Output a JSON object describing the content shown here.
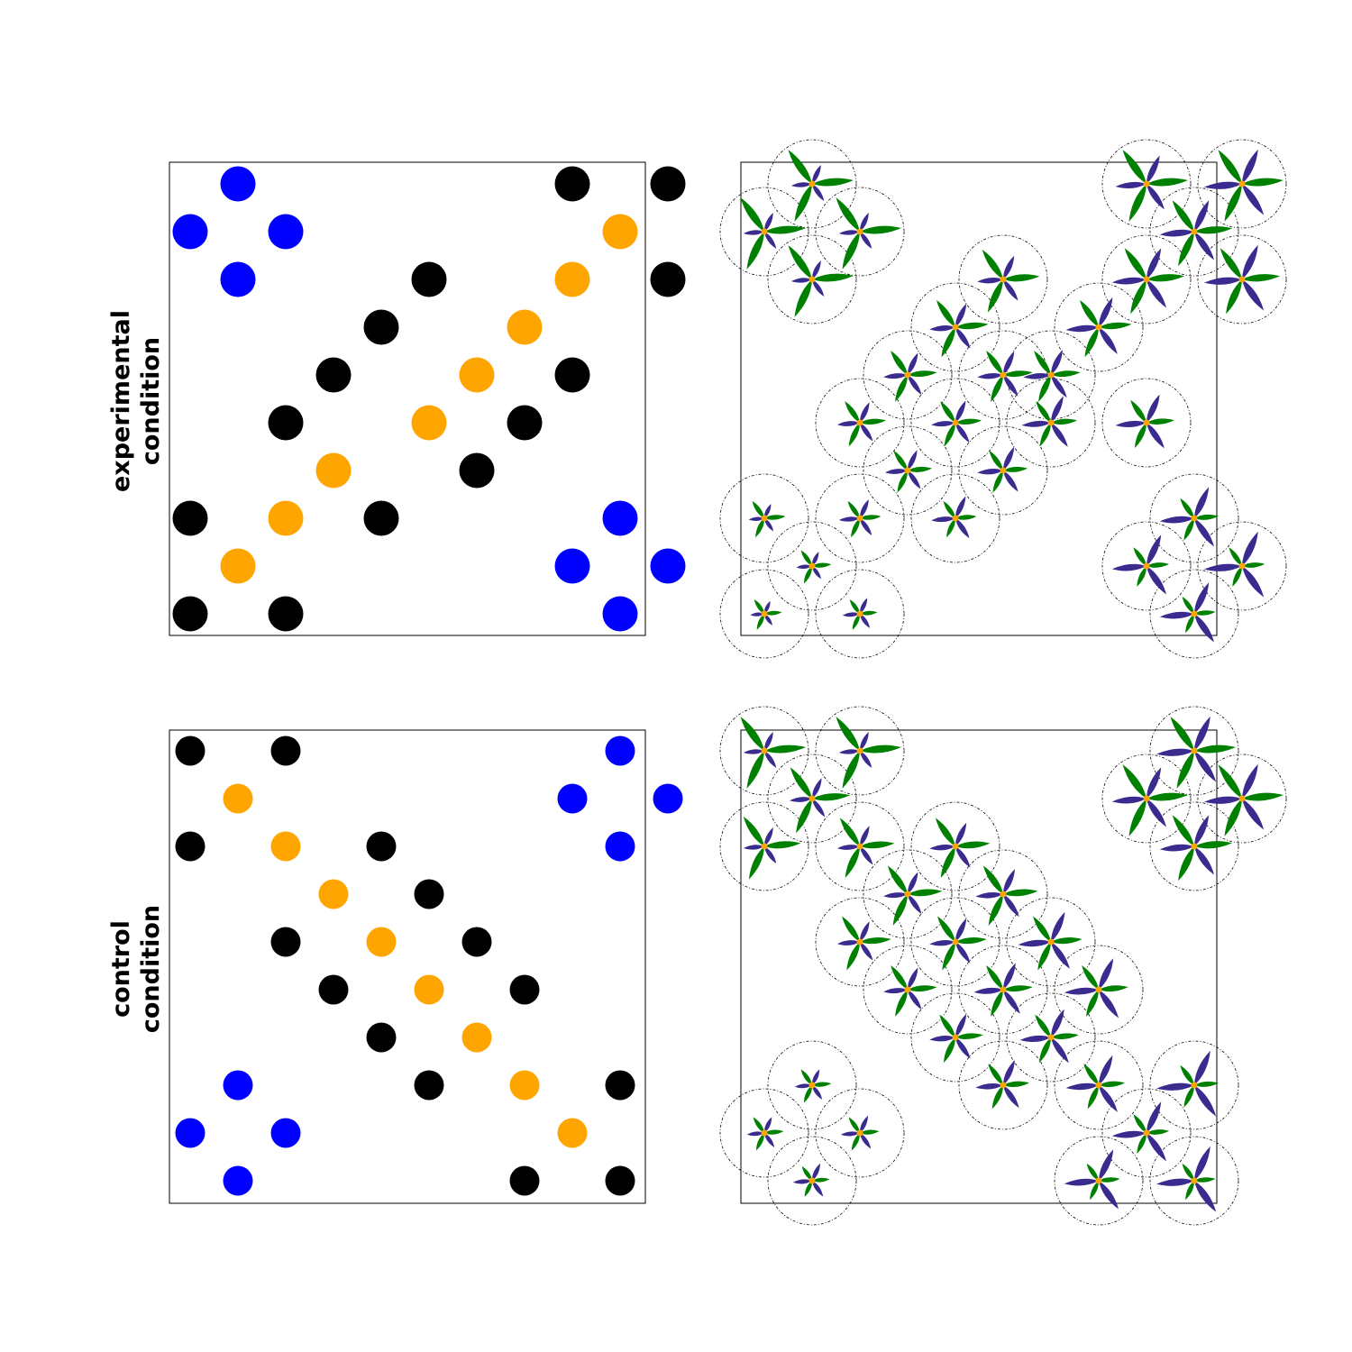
{
  "labels": {
    "experimental_line1": "experimental",
    "experimental_line2": "condition",
    "control_line1": "control",
    "control_line2": "condition"
  },
  "colors": {
    "blue": "#0000ff",
    "orange": "#ffa500",
    "black": "#000000",
    "petal_purple": "#3a2b8f",
    "leaf_green": "#008000",
    "center_orange": "#ffa500"
  },
  "experimental": {
    "dots": [
      {
        "c": 2,
        "r": 1,
        "color": "blue"
      },
      {
        "c": 1,
        "r": 2,
        "color": "blue"
      },
      {
        "c": 3,
        "r": 2,
        "color": "blue"
      },
      {
        "c": 2,
        "r": 3,
        "color": "blue"
      },
      {
        "c": 9,
        "r": 1,
        "color": "black"
      },
      {
        "c": 11,
        "r": 1,
        "color": "black"
      },
      {
        "c": 10,
        "r": 2,
        "color": "orange"
      },
      {
        "c": 6,
        "r": 3,
        "color": "black"
      },
      {
        "c": 9,
        "r": 3,
        "color": "orange"
      },
      {
        "c": 11,
        "r": 3,
        "color": "black"
      },
      {
        "c": 5,
        "r": 4,
        "color": "black"
      },
      {
        "c": 8,
        "r": 4,
        "color": "orange"
      },
      {
        "c": 4,
        "r": 5,
        "color": "black"
      },
      {
        "c": 7,
        "r": 5,
        "color": "orange"
      },
      {
        "c": 9,
        "r": 5,
        "color": "black"
      },
      {
        "c": 3,
        "r": 6,
        "color": "black"
      },
      {
        "c": 6,
        "r": 6,
        "color": "orange"
      },
      {
        "c": 8,
        "r": 6,
        "color": "black"
      },
      {
        "c": 4,
        "r": 7,
        "color": "orange"
      },
      {
        "c": 7,
        "r": 7,
        "color": "black"
      },
      {
        "c": 1,
        "r": 8,
        "color": "black"
      },
      {
        "c": 3,
        "r": 8,
        "color": "orange"
      },
      {
        "c": 5,
        "r": 8,
        "color": "black"
      },
      {
        "c": 10,
        "r": 8,
        "color": "blue"
      },
      {
        "c": 2,
        "r": 9,
        "color": "orange"
      },
      {
        "c": 9,
        "r": 9,
        "color": "blue"
      },
      {
        "c": 11,
        "r": 9,
        "color": "blue"
      },
      {
        "c": 1,
        "r": 10,
        "color": "black"
      },
      {
        "c": 3,
        "r": 10,
        "color": "black"
      },
      {
        "c": 10,
        "r": 10,
        "color": "blue"
      }
    ],
    "flowers": [
      {
        "c": 2,
        "r": 1,
        "petal": 0.4,
        "leaf": 0.9
      },
      {
        "c": 1,
        "r": 2,
        "petal": 0.4,
        "leaf": 0.9
      },
      {
        "c": 3,
        "r": 2,
        "petal": 0.4,
        "leaf": 0.9
      },
      {
        "c": 2,
        "r": 3,
        "petal": 0.4,
        "leaf": 0.9
      },
      {
        "c": 9,
        "r": 1,
        "petal": 0.7,
        "leaf": 0.9
      },
      {
        "c": 11,
        "r": 1,
        "petal": 0.9,
        "leaf": 0.9
      },
      {
        "c": 10,
        "r": 2,
        "petal": 0.8,
        "leaf": 0.8
      },
      {
        "c": 9,
        "r": 3,
        "petal": 0.8,
        "leaf": 0.8
      },
      {
        "c": 11,
        "r": 3,
        "petal": 0.9,
        "leaf": 0.8
      },
      {
        "c": 6,
        "r": 3,
        "petal": 0.55,
        "leaf": 0.75
      },
      {
        "c": 5,
        "r": 4,
        "petal": 0.55,
        "leaf": 0.65
      },
      {
        "c": 8,
        "r": 4,
        "petal": 0.75,
        "leaf": 0.65
      },
      {
        "c": 4,
        "r": 5,
        "petal": 0.5,
        "leaf": 0.55
      },
      {
        "c": 6,
        "r": 5,
        "petal": 0.55,
        "leaf": 0.55
      },
      {
        "c": 7,
        "r": 5,
        "petal": 0.6,
        "leaf": 0.55
      },
      {
        "c": 3,
        "r": 6,
        "petal": 0.45,
        "leaf": 0.45
      },
      {
        "c": 5,
        "r": 6,
        "petal": 0.5,
        "leaf": 0.45
      },
      {
        "c": 7,
        "r": 6,
        "petal": 0.65,
        "leaf": 0.45
      },
      {
        "c": 4,
        "r": 7,
        "petal": 0.45,
        "leaf": 0.4
      },
      {
        "c": 6,
        "r": 7,
        "petal": 0.55,
        "leaf": 0.4
      },
      {
        "c": 9,
        "r": 6,
        "petal": 0.7,
        "leaf": 0.5
      },
      {
        "c": 1,
        "r": 8,
        "petal": 0.25,
        "leaf": 0.3
      },
      {
        "c": 3,
        "r": 8,
        "petal": 0.4,
        "leaf": 0.3
      },
      {
        "c": 5,
        "r": 8,
        "petal": 0.5,
        "leaf": 0.3
      },
      {
        "c": 2,
        "r": 9,
        "petal": 0.25,
        "leaf": 0.25
      },
      {
        "c": 1,
        "r": 10,
        "petal": 0.2,
        "leaf": 0.2
      },
      {
        "c": 3,
        "r": 10,
        "petal": 0.3,
        "leaf": 0.2
      },
      {
        "c": 10,
        "r": 8,
        "petal": 0.8,
        "leaf": 0.4
      },
      {
        "c": 9,
        "r": 9,
        "petal": 0.8,
        "leaf": 0.35
      },
      {
        "c": 11,
        "r": 9,
        "petal": 0.9,
        "leaf": 0.35
      },
      {
        "c": 10,
        "r": 10,
        "petal": 0.8,
        "leaf": 0.3
      }
    ]
  },
  "control": {
    "dots": [
      {
        "c": 1,
        "r": 1,
        "color": "black"
      },
      {
        "c": 3,
        "r": 1,
        "color": "black"
      },
      {
        "c": 10,
        "r": 1,
        "color": "blue"
      },
      {
        "c": 2,
        "r": 2,
        "color": "orange"
      },
      {
        "c": 9,
        "r": 2,
        "color": "blue"
      },
      {
        "c": 11,
        "r": 2,
        "color": "blue"
      },
      {
        "c": 1,
        "r": 3,
        "color": "black"
      },
      {
        "c": 3,
        "r": 3,
        "color": "orange"
      },
      {
        "c": 5,
        "r": 3,
        "color": "black"
      },
      {
        "c": 10,
        "r": 3,
        "color": "blue"
      },
      {
        "c": 4,
        "r": 4,
        "color": "orange"
      },
      {
        "c": 6,
        "r": 4,
        "color": "black"
      },
      {
        "c": 3,
        "r": 5,
        "color": "black"
      },
      {
        "c": 5,
        "r": 5,
        "color": "orange"
      },
      {
        "c": 7,
        "r": 5,
        "color": "black"
      },
      {
        "c": 4,
        "r": 6,
        "color": "black"
      },
      {
        "c": 6,
        "r": 6,
        "color": "orange"
      },
      {
        "c": 8,
        "r": 6,
        "color": "black"
      },
      {
        "c": 5,
        "r": 7,
        "color": "black"
      },
      {
        "c": 7,
        "r": 7,
        "color": "orange"
      },
      {
        "c": 2,
        "r": 8,
        "color": "blue"
      },
      {
        "c": 6,
        "r": 8,
        "color": "black"
      },
      {
        "c": 8,
        "r": 8,
        "color": "orange"
      },
      {
        "c": 10,
        "r": 8,
        "color": "black"
      },
      {
        "c": 1,
        "r": 9,
        "color": "blue"
      },
      {
        "c": 3,
        "r": 9,
        "color": "blue"
      },
      {
        "c": 9,
        "r": 9,
        "color": "orange"
      },
      {
        "c": 2,
        "r": 10,
        "color": "blue"
      },
      {
        "c": 8,
        "r": 10,
        "color": "black"
      },
      {
        "c": 10,
        "r": 10,
        "color": "black"
      }
    ],
    "flowers": [
      {
        "c": 1,
        "r": 1,
        "petal": 0.4,
        "leaf": 0.9
      },
      {
        "c": 3,
        "r": 1,
        "petal": 0.4,
        "leaf": 0.9
      },
      {
        "c": 2,
        "r": 2,
        "petal": 0.45,
        "leaf": 0.8
      },
      {
        "c": 1,
        "r": 3,
        "petal": 0.4,
        "leaf": 0.75
      },
      {
        "c": 3,
        "r": 3,
        "petal": 0.45,
        "leaf": 0.7
      },
      {
        "c": 5,
        "r": 3,
        "petal": 0.55,
        "leaf": 0.7
      },
      {
        "c": 4,
        "r": 4,
        "petal": 0.5,
        "leaf": 0.7
      },
      {
        "c": 6,
        "r": 4,
        "petal": 0.6,
        "leaf": 0.7
      },
      {
        "c": 10,
        "r": 1,
        "petal": 0.9,
        "leaf": 0.9
      },
      {
        "c": 9,
        "r": 2,
        "petal": 0.8,
        "leaf": 0.9
      },
      {
        "c": 11,
        "r": 2,
        "petal": 0.9,
        "leaf": 0.9
      },
      {
        "c": 10,
        "r": 3,
        "petal": 0.8,
        "leaf": 0.8
      },
      {
        "c": 3,
        "r": 5,
        "petal": 0.45,
        "leaf": 0.6
      },
      {
        "c": 5,
        "r": 5,
        "petal": 0.55,
        "leaf": 0.6
      },
      {
        "c": 7,
        "r": 5,
        "petal": 0.75,
        "leaf": 0.6
      },
      {
        "c": 4,
        "r": 6,
        "petal": 0.5,
        "leaf": 0.55
      },
      {
        "c": 6,
        "r": 6,
        "petal": 0.65,
        "leaf": 0.55
      },
      {
        "c": 8,
        "r": 6,
        "petal": 0.8,
        "leaf": 0.55
      },
      {
        "c": 5,
        "r": 7,
        "petal": 0.55,
        "leaf": 0.5
      },
      {
        "c": 7,
        "r": 7,
        "petal": 0.7,
        "leaf": 0.5
      },
      {
        "c": 6,
        "r": 8,
        "petal": 0.6,
        "leaf": 0.45
      },
      {
        "c": 8,
        "r": 8,
        "petal": 0.75,
        "leaf": 0.45
      },
      {
        "c": 10,
        "r": 8,
        "petal": 0.9,
        "leaf": 0.4
      },
      {
        "c": 9,
        "r": 9,
        "petal": 0.8,
        "leaf": 0.35
      },
      {
        "c": 8,
        "r": 10,
        "petal": 0.8,
        "leaf": 0.3
      },
      {
        "c": 10,
        "r": 10,
        "petal": 0.9,
        "leaf": 0.3
      },
      {
        "c": 2,
        "r": 8,
        "petal": 0.3,
        "leaf": 0.25
      },
      {
        "c": 1,
        "r": 9,
        "petal": 0.3,
        "leaf": 0.25
      },
      {
        "c": 3,
        "r": 9,
        "petal": 0.35,
        "leaf": 0.25
      },
      {
        "c": 2,
        "r": 10,
        "petal": 0.35,
        "leaf": 0.2
      }
    ]
  }
}
